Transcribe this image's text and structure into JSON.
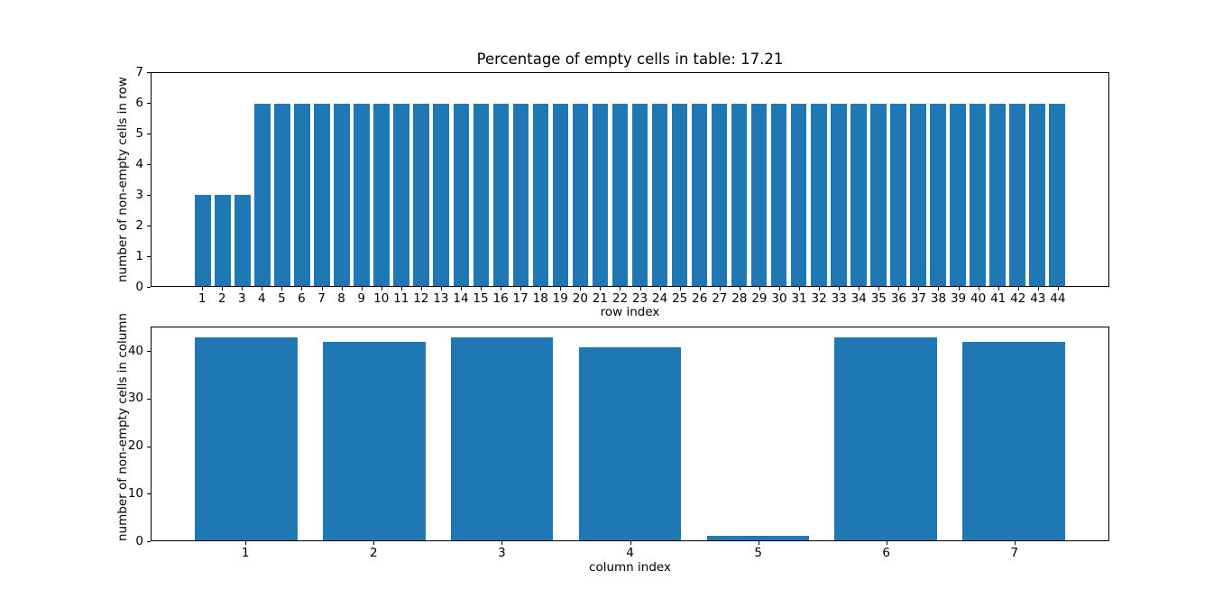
{
  "figure": {
    "background_color": "#ffffff",
    "text_color": "#000000",
    "bar_color": "#1f77b4",
    "spine_color": "#000000"
  },
  "chart_data": [
    {
      "type": "bar",
      "title": "Percentage of empty cells in table: 17.21",
      "xlabel": "row index",
      "ylabel": "number of non-empty cells in row",
      "categories": [
        1,
        2,
        3,
        4,
        5,
        6,
        7,
        8,
        9,
        10,
        11,
        12,
        13,
        14,
        15,
        16,
        17,
        18,
        19,
        20,
        21,
        22,
        23,
        24,
        25,
        26,
        27,
        28,
        29,
        30,
        31,
        32,
        33,
        34,
        35,
        36,
        37,
        38,
        39,
        40,
        41,
        42,
        43,
        44
      ],
      "values": [
        3,
        3,
        3,
        6,
        6,
        6,
        6,
        6,
        6,
        6,
        6,
        6,
        6,
        6,
        6,
        6,
        6,
        6,
        6,
        6,
        6,
        6,
        6,
        6,
        6,
        6,
        6,
        6,
        6,
        6,
        6,
        6,
        6,
        6,
        6,
        6,
        6,
        6,
        6,
        6,
        6,
        6,
        6,
        6
      ],
      "bar_width": 0.8,
      "xlim": [
        -1.59,
        46.59
      ],
      "ylim": [
        0,
        7
      ],
      "yticks": [
        0,
        1,
        2,
        3,
        4,
        5,
        6,
        7
      ],
      "grid": false,
      "legend": null
    },
    {
      "type": "bar",
      "title": "",
      "xlabel": "column index",
      "ylabel": "number of non-empty cells in column",
      "categories": [
        1,
        2,
        3,
        4,
        5,
        6,
        7
      ],
      "values": [
        43,
        42,
        43,
        41,
        1,
        43,
        42
      ],
      "bar_width": 0.8,
      "xlim": [
        0.26,
        7.74
      ],
      "ylim": [
        0,
        45.15
      ],
      "yticks": [
        0,
        10,
        20,
        30,
        40
      ],
      "grid": false,
      "legend": null
    }
  ]
}
